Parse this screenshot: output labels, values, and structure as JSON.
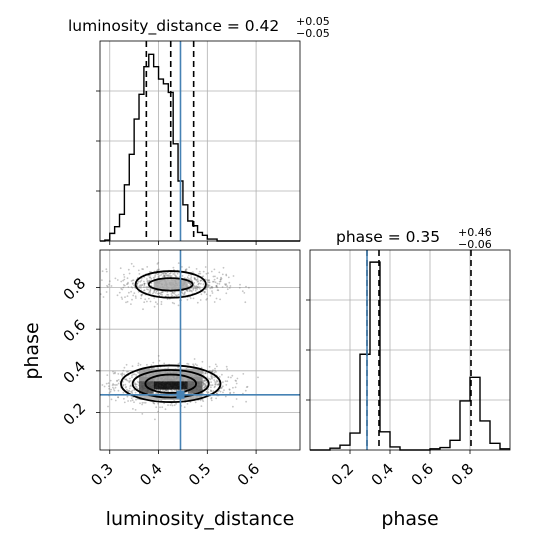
{
  "chart_data": {
    "type": "corner",
    "truth": {
      "luminosity_distance": 0.445,
      "phase": 0.285
    },
    "colors": {
      "truth": "#4682b4",
      "hist": "#000000",
      "grid": "#b0b0b0",
      "scatter": "#7f7f7f"
    },
    "grid": true,
    "panels": [
      {
        "id": "hist-luminosity-distance",
        "type": "histogram",
        "parameter": "luminosity_distance",
        "title_param": "luminosity_distance",
        "title_value": "0.42",
        "title_plus": "+0.05",
        "title_minus": "−0.05",
        "xlim": [
          0.28,
          0.69
        ],
        "x_ticks": [
          0.3,
          0.4,
          0.5,
          0.6
        ],
        "bin_edges": [
          0.28,
          0.29,
          0.3,
          0.31,
          0.32,
          0.33,
          0.34,
          0.35,
          0.36,
          0.37,
          0.38,
          0.39,
          0.4,
          0.41,
          0.42,
          0.43,
          0.44,
          0.45,
          0.46,
          0.47,
          0.48,
          0.49,
          0.5,
          0.51,
          0.52,
          0.53,
          0.54,
          0.55,
          0.56,
          0.57,
          0.58,
          0.59,
          0.6,
          0.61,
          0.62,
          0.63,
          0.64,
          0.65,
          0.66,
          0.67,
          0.68,
          0.69
        ],
        "counts": [
          0,
          1,
          8,
          15,
          28,
          59,
          91,
          128,
          154,
          183,
          196,
          183,
          170,
          165,
          156,
          102,
          63,
          38,
          21,
          16,
          9,
          6,
          2,
          2,
          0,
          0,
          0,
          0,
          0,
          0,
          0,
          0,
          0,
          0,
          0,
          0,
          0,
          0,
          0,
          0,
          0
        ],
        "ymax": 210,
        "quantiles": [
          0.375,
          0.425,
          0.472
        ]
      },
      {
        "id": "hist-phase",
        "type": "histogram",
        "parameter": "phase",
        "title_param": "phase",
        "title_value": "0.35",
        "title_plus": "+0.46",
        "title_minus": "−0.06",
        "xlim": [
          0.0,
          1.0
        ],
        "x_ticks": [
          0.2,
          0.4,
          0.6,
          0.8
        ],
        "bin_edges": [
          0.0,
          0.05,
          0.1,
          0.15,
          0.2,
          0.25,
          0.3,
          0.35,
          0.4,
          0.45,
          0.5,
          0.55,
          0.6,
          0.65,
          0.7,
          0.75,
          0.8,
          0.85,
          0.9,
          0.95,
          1.0
        ],
        "counts": [
          0,
          0,
          3,
          8,
          28,
          158,
          310,
          30,
          5,
          0,
          0,
          0,
          2,
          4,
          16,
          81,
          120,
          48,
          11,
          2
        ],
        "ymax": 330,
        "quantiles": [
          0.285,
          0.345,
          0.805
        ]
      },
      {
        "id": "scatter-2d",
        "type": "density2d",
        "x_parameter": "luminosity_distance",
        "y_parameter": "phase",
        "xlim": [
          0.28,
          0.69
        ],
        "ylim": [
          0.02,
          0.98
        ],
        "x_ticks": [
          0.3,
          0.4,
          0.5,
          0.6
        ],
        "y_ticks": [
          0.2,
          0.4,
          0.6,
          0.8
        ],
        "xlabel": "luminosity_distance",
        "ylabel": "phase",
        "modes": [
          {
            "cx": 0.425,
            "cy": 0.335,
            "sx": 0.042,
            "sy": 0.038,
            "n": 1300
          },
          {
            "cx": 0.425,
            "cy": 0.815,
            "sx": 0.04,
            "sy": 0.036,
            "n": 700
          }
        ],
        "contours": [
          {
            "cx": 0.425,
            "cy": 0.338,
            "rx": 0.102,
            "ry": 0.088
          },
          {
            "cx": 0.425,
            "cy": 0.338,
            "rx": 0.078,
            "ry": 0.066
          },
          {
            "cx": 0.425,
            "cy": 0.338,
            "rx": 0.052,
            "ry": 0.044
          },
          {
            "cx": 0.425,
            "cy": 0.815,
            "rx": 0.072,
            "ry": 0.064
          },
          {
            "cx": 0.425,
            "cy": 0.815,
            "rx": 0.045,
            "ry": 0.03
          }
        ],
        "density_cells": [
          {
            "x0": 0.39,
            "x1": 0.46,
            "y0": 0.31,
            "y1": 0.35,
            "shade": "#000000"
          },
          {
            "x0": 0.36,
            "x1": 0.39,
            "y0": 0.29,
            "y1": 0.37,
            "shade": "#444444"
          },
          {
            "x0": 0.46,
            "x1": 0.49,
            "y0": 0.29,
            "y1": 0.37,
            "shade": "#555555"
          },
          {
            "x0": 0.36,
            "x1": 0.49,
            "y0": 0.35,
            "y1": 0.41,
            "shade": "#999999"
          },
          {
            "x0": 0.36,
            "x1": 0.49,
            "y0": 0.26,
            "y1": 0.29,
            "shade": "#aaaaaa"
          },
          {
            "x0": 0.39,
            "x1": 0.46,
            "y0": 0.79,
            "y1": 0.84,
            "shade": "#aaaaaa"
          }
        ]
      }
    ]
  }
}
